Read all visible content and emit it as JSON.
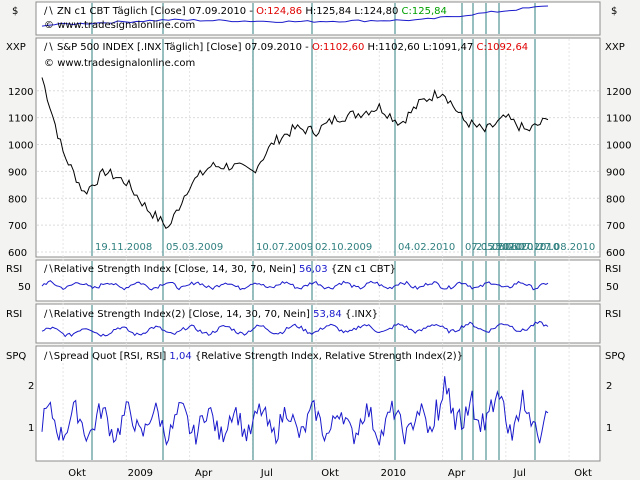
{
  "colors": {
    "background": "#f3f3f1",
    "panel": "#ffffff",
    "grid": "#d8d8d8",
    "vline": "#2f7f7f",
    "price_line": "#000000",
    "indicator_line": "#1a1acc",
    "header_text": "#000000",
    "header_red": "#e00000",
    "header_green": "#00a000",
    "header_blue": "#1a1acc",
    "date_label": "#2f7f7f"
  },
  "panels": {
    "zn": {
      "axis_label_left": "$",
      "axis_label_right": "$",
      "header_main": "ZN c1 CBT Täglich [Close]",
      "header_date": "07.09.2010",
      "header_o": "O:124,86",
      "header_h": "H:125,84",
      "header_l": "L:124,80",
      "header_c": "C:125,84",
      "watermark": "www.tradesignalonline.com"
    },
    "spx": {
      "axis_label_left": "XXP",
      "axis_label_right": "XXP",
      "header_main": "S&P 500 INDEX [.INX Täglich] [Close]",
      "header_date": "07.09.2010",
      "header_o": "O:1102,60",
      "header_h": "H:1102,60",
      "header_l": "L:1091,47",
      "header_c": "C:1092,64",
      "watermark": "www.tradesignalonline.com"
    },
    "rsi1": {
      "axis_label_left": "RSI",
      "axis_label_right": "RSI",
      "header_main": "Relative Strength Index [Close, 14, 30, 70, Nein]",
      "header_value": "56,03",
      "header_suffix": "{ZN c1 CBT}"
    },
    "rsi2": {
      "axis_label_left": "RSI",
      "axis_label_right": "RSI",
      "header_main": "Relative Strength Index(2) [Close, 14, 30, 70, Nein]",
      "header_value": "53,84",
      "header_suffix": "{.INX}"
    },
    "spq": {
      "axis_label_left": "SPQ",
      "axis_label_right": "SPQ",
      "header_main": "Spread Quot [RSI, RSI]",
      "header_value": "1,04",
      "header_suffix": "{Relative Strength Index, Relative Strength Index(2)}"
    }
  },
  "chart_data": {
    "type": "line",
    "x_axis_labels": [
      "Okt",
      "2009",
      "Apr",
      "Jul",
      "Okt",
      "2010",
      "Apr",
      "Jul",
      "Okt"
    ],
    "event_dates": [
      "19.11.2008",
      "05.03.2009",
      "10.07.2009",
      "02.10.2009",
      "04.02.2010",
      "07.05.2010",
      "21.05.2010",
      "25.06.2010",
      "07.07.2010",
      "27.08.2010"
    ],
    "event_date_text": {
      "d1": "19.11.2008",
      "d2": "05.03.2009",
      "d3": "10.07.2009",
      "d4": "02.10.2009",
      "d5": "04.02.2010",
      "d6": "07.05.2010",
      "d7": "21.05.2010",
      "d8": "25.06.2010",
      "d9": "07.07.2010",
      "d10": "27.08.2010"
    },
    "series": [
      {
        "name": "S&P 500 INDEX",
        "x": [
          "2008-09",
          "2008-10",
          "2008-11",
          "2008-12",
          "2009-01",
          "2009-02",
          "2009-03",
          "2009-04",
          "2009-05",
          "2009-06",
          "2009-07",
          "2009-08",
          "2009-09",
          "2009-10",
          "2009-11",
          "2009-12",
          "2010-01",
          "2010-02",
          "2010-03",
          "2010-04",
          "2010-05",
          "2010-06",
          "2010-07",
          "2010-08",
          "2010-09"
        ],
        "values": [
          1250,
          970,
          820,
          900,
          860,
          760,
          690,
          850,
          920,
          920,
          900,
          1010,
          1060,
          1050,
          1100,
          1115,
          1140,
          1080,
          1160,
          1200,
          1090,
          1050,
          1100,
          1050,
          1093
        ],
        "ylim": [
          600,
          1270
        ],
        "yticks": [
          600,
          700,
          800,
          900,
          1000,
          1100,
          1200
        ]
      },
      {
        "name": "ZN c1 CBT",
        "x": [
          "2008-09",
          "2009-03",
          "2009-09",
          "2010-03",
          "2010-09"
        ],
        "values": [
          115,
          118,
          117,
          118,
          125.84
        ]
      },
      {
        "name": "Relative Strength Index",
        "yticks": [
          50
        ],
        "last": 56.03
      },
      {
        "name": "Relative Strength Index(2)",
        "last": 53.84
      },
      {
        "name": "Spread Quot",
        "yticks": [
          1,
          2
        ],
        "ylim": [
          0.3,
          2.6
        ],
        "last": 1.04
      }
    ]
  }
}
